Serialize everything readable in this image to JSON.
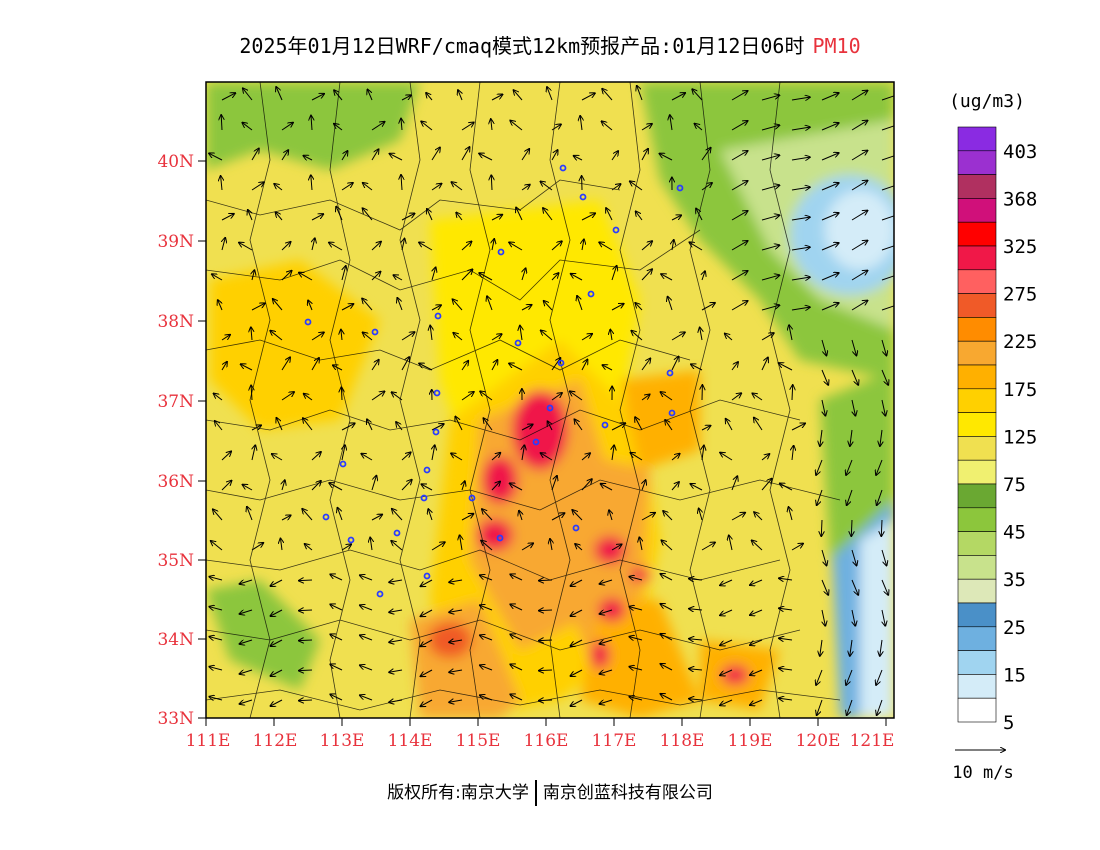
{
  "title": {
    "main": "2025年01月12日WRF/cmaq模式12km预报产品:01月12日06时",
    "pollutant": "PM10"
  },
  "lat_labels": [
    "40N",
    "39N",
    "38N",
    "37N",
    "36N",
    "35N",
    "34N",
    "33N"
  ],
  "lon_labels": [
    "111E",
    "112E",
    "113E",
    "114E",
    "115E",
    "116E",
    "117E",
    "118E",
    "119E",
    "120E",
    "121E"
  ],
  "legend": {
    "unit": "(ug/m3)",
    "labels": [
      "403",
      "368",
      "325",
      "275",
      "225",
      "175",
      "125",
      "75",
      "45",
      "35",
      "25",
      "15",
      "5"
    ],
    "colors": [
      "#8a2be2",
      "#9b30d0",
      "#b03060",
      "#d0107a",
      "#ff0000",
      "#f01848",
      "#ff6060",
      "#f05a28",
      "#ff8c00",
      "#f8a830",
      "#ffb000",
      "#ffd000",
      "#ffe800",
      "#f0e050",
      "#f0f070",
      "#6aa832",
      "#8cc63c",
      "#b4d864",
      "#c8e28c",
      "#dde8b8",
      "#4a90c8",
      "#6eb0e0",
      "#a0d4f0",
      "#d4ecf8",
      "#ffffff"
    ]
  },
  "wind_scale": {
    "label": "10 m/s"
  },
  "footer": {
    "left": "版权所有:南京大学",
    "right": "南京创蓝科技有限公司"
  },
  "colors": {
    "accent": "#e8323c",
    "text": "#000000"
  }
}
